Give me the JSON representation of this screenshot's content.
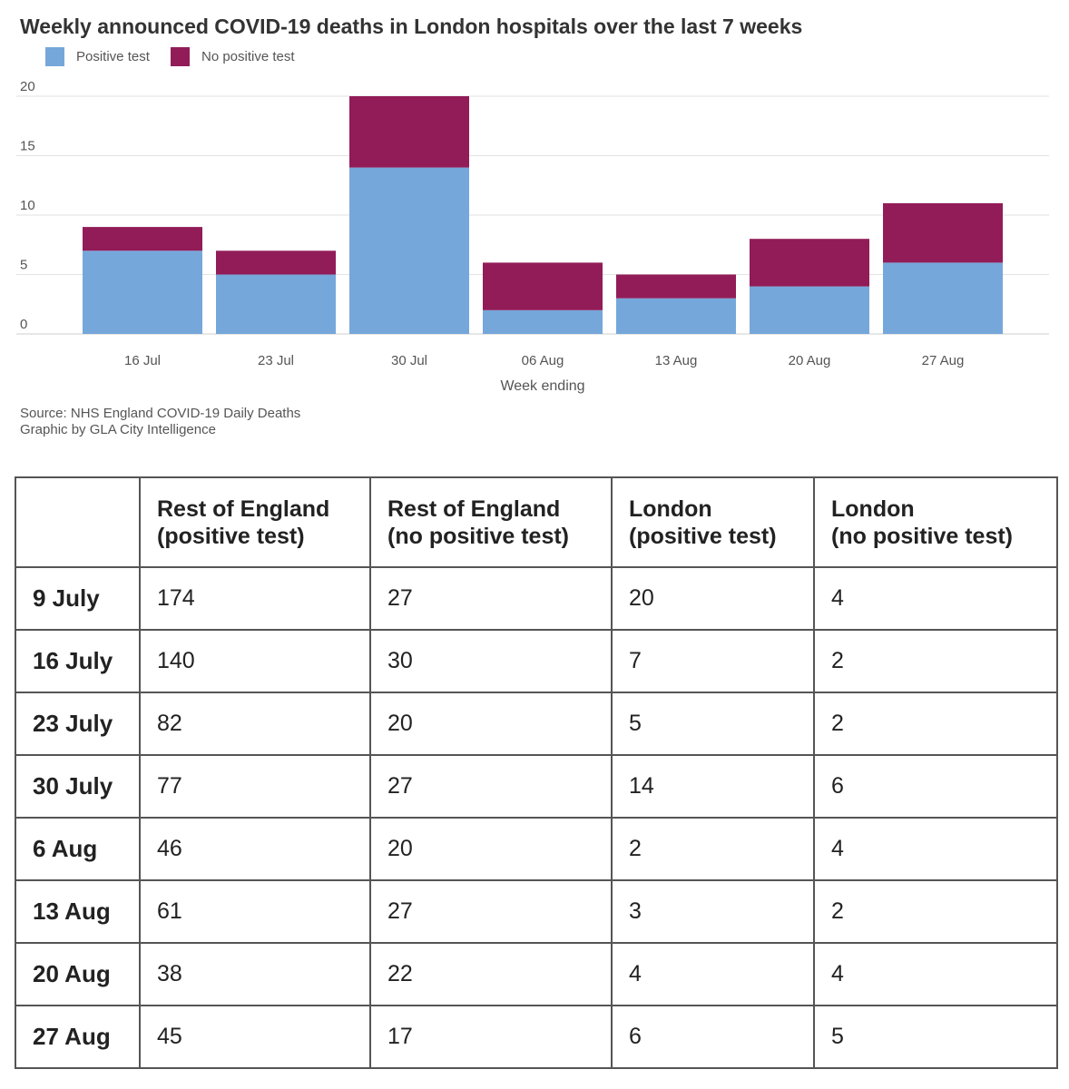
{
  "chart": {
    "title": "Weekly announced COVID-19 deaths in London hospitals over the last 7 weeks",
    "source_line_1": "Source: NHS England COVID-19 Daily Deaths",
    "source_line_2": "Graphic by GLA City Intelligence"
  },
  "chart_data": {
    "type": "bar",
    "stacked": true,
    "title": "Weekly announced COVID-19 deaths in London hospitals over the last 7 weeks",
    "xlabel": "Week ending",
    "ylabel": "",
    "categories": [
      "16 Jul",
      "23 Jul",
      "30 Jul",
      "06 Aug",
      "13 Aug",
      "20 Aug",
      "27 Aug"
    ],
    "series": [
      {
        "name": "Positive test",
        "color": "#76a7da",
        "values": [
          7,
          5,
          14,
          2,
          3,
          4,
          6
        ]
      },
      {
        "name": "No positive test",
        "color": "#921c58",
        "values": [
          2,
          2,
          6,
          4,
          2,
          4,
          5
        ]
      }
    ],
    "ylim": [
      0,
      20
    ],
    "yticks": [
      0,
      5,
      10,
      15,
      20
    ],
    "grid": true,
    "legend": "top-left"
  },
  "table": {
    "headers": [
      "",
      "Rest of England\n(positive test)",
      "Rest of England\n(no positive test)",
      "London\n(positive test)",
      "London\n(no positive test)"
    ],
    "rows": [
      [
        "9 July",
        "174",
        "27",
        "20",
        "4"
      ],
      [
        "16 July",
        "140",
        "30",
        "7",
        "2"
      ],
      [
        "23 July",
        "82",
        "20",
        "5",
        "2"
      ],
      [
        "30 July",
        "77",
        "27",
        "14",
        "6"
      ],
      [
        "6 Aug",
        "46",
        "20",
        "2",
        "4"
      ],
      [
        "13 Aug",
        "61",
        "27",
        "3",
        "2"
      ],
      [
        "20 Aug",
        "38",
        "22",
        "4",
        "4"
      ],
      [
        "27 Aug",
        "45",
        "17",
        "6",
        "5"
      ]
    ]
  }
}
